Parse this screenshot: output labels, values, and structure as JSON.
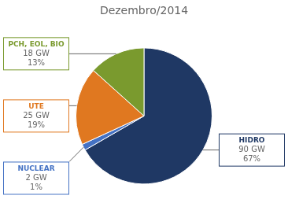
{
  "chart_data": {
    "type": "pie",
    "title": "Dezembro/2014",
    "categories": [
      "HIDRO",
      "NUCLEAR",
      "UTE",
      "PCH, EOL, BIO"
    ],
    "values": [
      90,
      2,
      25,
      18
    ],
    "value_labels": [
      "90 GW",
      "2 GW",
      "25 GW",
      "18 GW"
    ],
    "percentages": [
      67,
      1,
      19,
      13
    ],
    "percentage_labels": [
      "67%",
      "1%",
      "19%",
      "13%"
    ],
    "colors": [
      "#1f3864",
      "#4472c4",
      "#e07820",
      "#7a9a2e"
    ],
    "data_labels": true
  }
}
